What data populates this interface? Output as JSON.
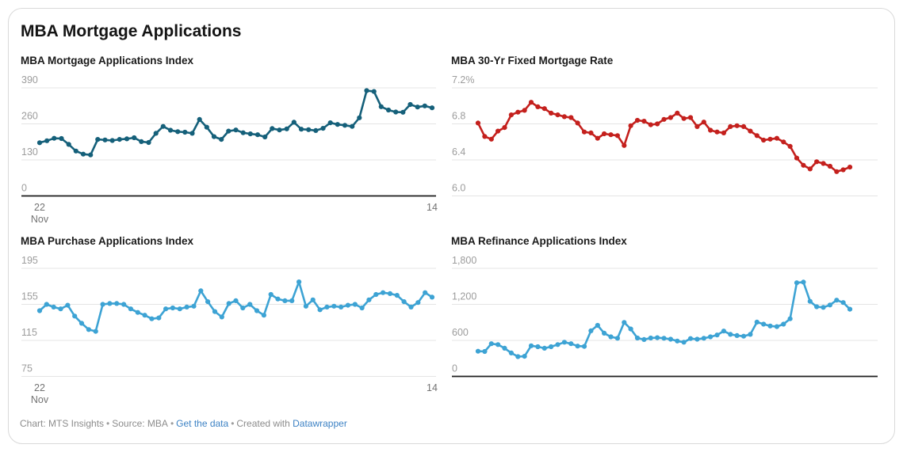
{
  "page_title": "MBA Mortgage Applications",
  "footer": {
    "chart_credit": "Chart: MTS Insights",
    "source": "Source: MBA",
    "get_data_label": "Get the data",
    "created_with": "Created with",
    "datawrapper_label": "Datawrapper",
    "separator": "•"
  },
  "chart_data": [
    {
      "type": "line",
      "title": "MBA Mortgage Applications Index",
      "color": "#15607a",
      "ylim": [
        0,
        390
      ],
      "grid": "horizontal",
      "markers": true,
      "dark_baseline": true,
      "y_ticks": [
        {
          "value": 390,
          "label": "390"
        },
        {
          "value": 260,
          "label": "260"
        },
        {
          "value": 130,
          "label": "130"
        },
        {
          "value": 0,
          "label": "0"
        }
      ],
      "x_ticks": [
        {
          "label": "22",
          "sublabel": "Nov",
          "position": "start"
        },
        {
          "label": "14",
          "position": "end"
        }
      ],
      "values": [
        192,
        199,
        208,
        207,
        186,
        162,
        151,
        148,
        204,
        202,
        200,
        204,
        206,
        210,
        196,
        193,
        226,
        251,
        237,
        232,
        230,
        226,
        276,
        248,
        214,
        204,
        234,
        238,
        228,
        224,
        221,
        213,
        243,
        238,
        242,
        266,
        241,
        239,
        236,
        244,
        264,
        258,
        255,
        251,
        282,
        380,
        377,
        322,
        310,
        303,
        302,
        330,
        321,
        325,
        318
      ]
    },
    {
      "type": "line",
      "title": "MBA 30-Yr Fixed Mortgage Rate",
      "color": "#c4201d",
      "ylim": [
        6.0,
        7.2
      ],
      "grid": "horizontal",
      "markers": true,
      "dark_baseline": false,
      "y_ticks": [
        {
          "value": 7.2,
          "label": "7.2%"
        },
        {
          "value": 6.8,
          "label": "6.8"
        },
        {
          "value": 6.4,
          "label": "6.4"
        },
        {
          "value": 6.0,
          "label": "6.0"
        }
      ],
      "x_ticks": [],
      "values": [
        6.81,
        6.66,
        6.63,
        6.72,
        6.76,
        6.9,
        6.93,
        6.95,
        7.04,
        6.99,
        6.97,
        6.92,
        6.9,
        6.88,
        6.87,
        6.81,
        6.71,
        6.7,
        6.64,
        6.69,
        6.68,
        6.67,
        6.56,
        6.78,
        6.84,
        6.83,
        6.79,
        6.8,
        6.85,
        6.87,
        6.92,
        6.86,
        6.87,
        6.77,
        6.82,
        6.73,
        6.71,
        6.7,
        6.77,
        6.78,
        6.77,
        6.72,
        6.67,
        6.62,
        6.63,
        6.64,
        6.6,
        6.55,
        6.42,
        6.34,
        6.3,
        6.38,
        6.36,
        6.33,
        6.27,
        6.29,
        6.32
      ]
    },
    {
      "type": "line",
      "title": "MBA Purchase Applications Index",
      "color": "#3da3d4",
      "ylim": [
        75,
        195
      ],
      "grid": "horizontal",
      "markers": true,
      "dark_baseline": false,
      "y_ticks": [
        {
          "value": 195,
          "label": "195"
        },
        {
          "value": 155,
          "label": "155"
        },
        {
          "value": 115,
          "label": "115"
        },
        {
          "value": 75,
          "label": "75"
        }
      ],
      "x_ticks": [
        {
          "label": "22",
          "sublabel": "Nov",
          "position": "start"
        },
        {
          "label": "14",
          "position": "end"
        }
      ],
      "values": [
        148,
        155,
        152,
        150,
        154,
        142,
        134,
        127,
        125,
        155,
        156,
        156,
        155,
        150,
        146,
        143,
        139,
        140,
        150,
        151,
        150,
        152,
        153,
        170,
        158,
        147,
        141,
        156,
        159,
        151,
        155,
        148,
        143,
        166,
        161,
        159,
        159,
        180,
        153,
        160,
        149,
        152,
        153,
        152,
        154,
        155,
        151,
        160,
        166,
        168,
        167,
        165,
        158,
        152,
        157,
        168,
        163
      ]
    },
    {
      "type": "line",
      "title": "MBA Refinance Applications Index",
      "color": "#3da3d4",
      "ylim": [
        0,
        1800
      ],
      "grid": "horizontal",
      "markers": true,
      "dark_baseline": true,
      "y_ticks": [
        {
          "value": 1800,
          "label": "1,800"
        },
        {
          "value": 1200,
          "label": "1,200"
        },
        {
          "value": 600,
          "label": "600"
        },
        {
          "value": 0,
          "label": "0"
        }
      ],
      "x_ticks": [],
      "values": [
        420,
        415,
        545,
        530,
        470,
        390,
        330,
        335,
        510,
        495,
        470,
        495,
        530,
        570,
        545,
        505,
        500,
        760,
        850,
        720,
        660,
        635,
        900,
        790,
        640,
        615,
        640,
        645,
        635,
        620,
        590,
        570,
        630,
        620,
        635,
        660,
        690,
        755,
        700,
        680,
        670,
        700,
        905,
        870,
        840,
        830,
        870,
        960,
        1560,
        1570,
        1250,
        1160,
        1150,
        1190,
        1270,
        1230,
        1120
      ]
    }
  ]
}
